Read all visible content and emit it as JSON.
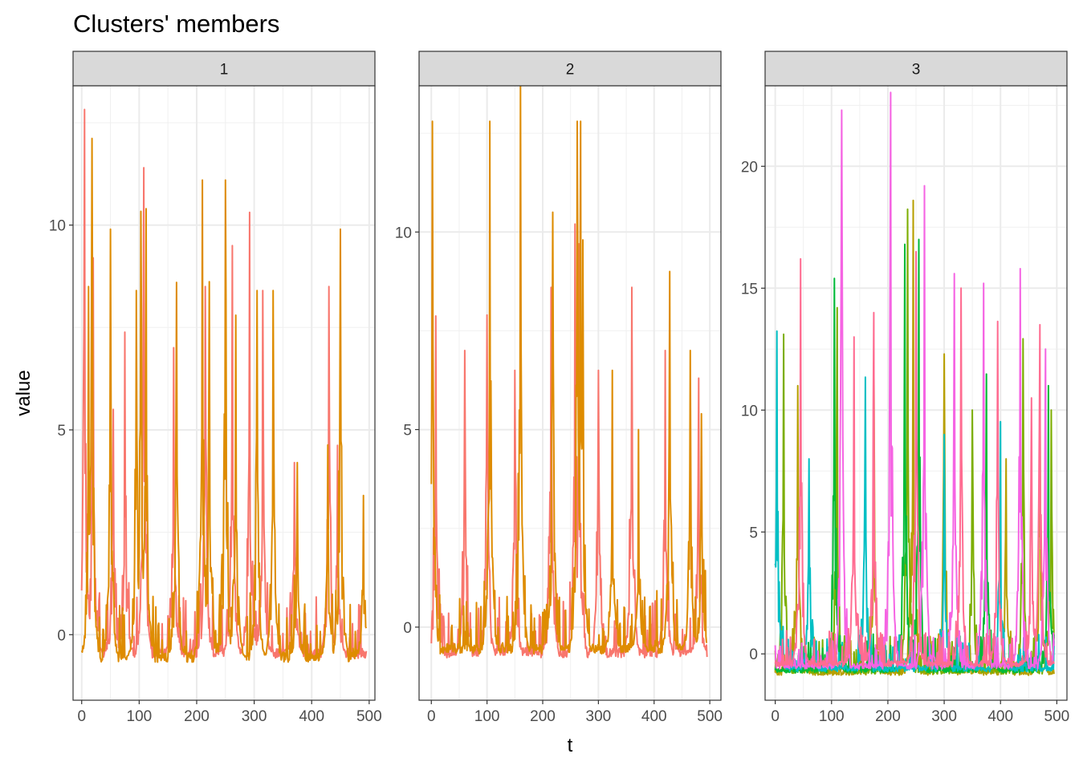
{
  "chart_data": {
    "type": "line",
    "title": "Clusters' members",
    "xlabel": "t",
    "ylabel": "value",
    "grid": true,
    "legend": "none",
    "panels": [
      {
        "strip": "1",
        "xlim": [
          -15,
          510
        ],
        "ylim": [
          -1.6,
          13.4
        ],
        "x_ticks": [
          0,
          100,
          200,
          300,
          400,
          500
        ],
        "y_ticks": [
          0,
          5,
          10
        ],
        "series": [
          {
            "color": "#F8766D",
            "baseline": -0.45,
            "spikes": [
              [
                5,
                12.8
              ],
              [
                20,
                9.2
              ],
              [
                55,
                5.5
              ],
              [
                75,
                7.3
              ],
              [
                108,
                11.4
              ],
              [
                160,
                6.7
              ],
              [
                215,
                8.5
              ],
              [
                262,
                9.5
              ],
              [
                292,
                9.5
              ],
              [
                315,
                8.4
              ],
              [
                370,
                4.2
              ],
              [
                430,
                8.5
              ],
              [
                445,
                4.0
              ]
            ]
          },
          {
            "color": "#DE8C00",
            "baseline": -0.55,
            "spikes": [
              [
                12,
                8.5
              ],
              [
                18,
                11.1
              ],
              [
                50,
                9.9
              ],
              [
                95,
                8.4
              ],
              [
                103,
                10.0
              ],
              [
                112,
                10.4
              ],
              [
                165,
                8.6
              ],
              [
                210,
                11.1
              ],
              [
                222,
                8.5
              ],
              [
                250,
                11.1
              ],
              [
                268,
                7.8
              ],
              [
                305,
                8.4
              ],
              [
                333,
                8.4
              ],
              [
                375,
                4.2
              ],
              [
                428,
                4.5
              ],
              [
                450,
                9.9
              ],
              [
                490,
                3.4
              ]
            ]
          }
        ]
      },
      {
        "strip": "2",
        "xlim": [
          -22,
          520
        ],
        "ylim": [
          -1.85,
          13.7
        ],
        "x_ticks": [
          0,
          100,
          200,
          300,
          400,
          500
        ],
        "y_ticks": [
          0,
          5,
          10
        ],
        "series": [
          {
            "color": "#F8766D",
            "baseline": -0.65,
            "spikes": [
              [
                8,
                7.7
              ],
              [
                60,
                7.0
              ],
              [
                100,
                7.9
              ],
              [
                150,
                6.5
              ],
              [
                215,
                8.6
              ],
              [
                258,
                10.2
              ],
              [
                265,
                9.7
              ],
              [
                300,
                6.5
              ],
              [
                360,
                8.6
              ],
              [
                420,
                7.0
              ],
              [
                480,
                6.3
              ]
            ]
          },
          {
            "color": "#DE8C00",
            "baseline": -0.55,
            "spikes": [
              [
                2,
                12.8
              ],
              [
                105,
                12.8
              ],
              [
                160,
                12.8
              ],
              [
                218,
                10.5
              ],
              [
                262,
                12.8
              ],
              [
                268,
                12.8
              ],
              [
                272,
                9.8
              ],
              [
                325,
                6.5
              ],
              [
                372,
                5.0
              ],
              [
                428,
                9.0
              ],
              [
                465,
                7.0
              ],
              [
                485,
                5.4
              ]
            ]
          }
        ]
      },
      {
        "strip": "3",
        "xlim": [
          -18,
          518
        ],
        "ylim": [
          -1.9,
          23.3
        ],
        "x_ticks": [
          0,
          100,
          200,
          300,
          400,
          500
        ],
        "y_ticks": [
          0,
          5,
          10,
          15,
          20
        ],
        "series": [
          {
            "color": "#B79F00",
            "baseline": -0.75,
            "spikes": [
              [
                40,
                11.0
              ],
              [
                175,
                12.0
              ],
              [
                245,
                18.6
              ],
              [
                300,
                12.3
              ],
              [
                410,
                8.0
              ],
              [
                470,
                11.0
              ]
            ]
          },
          {
            "color": "#7CAE00",
            "baseline": -0.7,
            "spikes": [
              [
                15,
                11.8
              ],
              [
                110,
                14.2
              ],
              [
                235,
                17.0
              ],
              [
                350,
                10.0
              ],
              [
                440,
                12.0
              ],
              [
                490,
                10.0
              ]
            ]
          },
          {
            "color": "#00BA38",
            "baseline": -0.65,
            "spikes": [
              [
                105,
                15.4
              ],
              [
                230,
                16.8
              ],
              [
                255,
                17.0
              ],
              [
                375,
                10.5
              ],
              [
                485,
                11.0
              ]
            ]
          },
          {
            "color": "#00BFC4",
            "baseline": -0.6,
            "spikes": [
              [
                3,
                12.5
              ],
              [
                60,
                8.0
              ],
              [
                160,
                10.5
              ],
              [
                300,
                9.0
              ],
              [
                400,
                8.5
              ]
            ]
          },
          {
            "color": "#F564E3",
            "baseline": -0.5,
            "spikes": [
              [
                118,
                22.3
              ],
              [
                205,
                22.3
              ],
              [
                265,
                19.2
              ],
              [
                318,
                15.6
              ],
              [
                370,
                15.2
              ],
              [
                435,
                15.8
              ],
              [
                480,
                12.5
              ]
            ]
          },
          {
            "color": "#FF6C91",
            "baseline": -0.4,
            "spikes": [
              [
                45,
                16.2
              ],
              [
                140,
                13.0
              ],
              [
                175,
                14.0
              ],
              [
                250,
                16.5
              ],
              [
                330,
                15.0
              ],
              [
                395,
                13.0
              ],
              [
                455,
                10.5
              ],
              [
                470,
                13.5
              ]
            ]
          }
        ]
      }
    ]
  }
}
